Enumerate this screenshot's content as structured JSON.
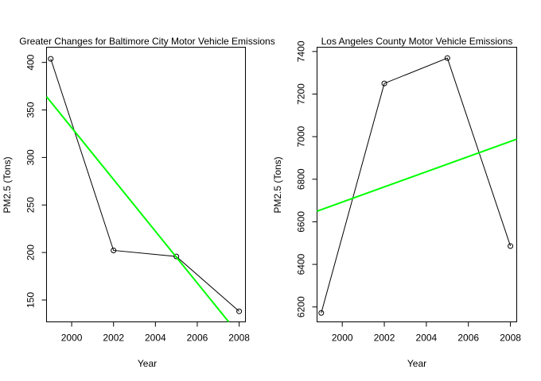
{
  "chart_data": [
    {
      "type": "line",
      "title": "Greater Changes for Baltimore City Motor Vehicle Emissions",
      "xlabel": "Year",
      "ylabel": "PM2.5 (Tons)",
      "xlim": [
        1998.8,
        2008.3
      ],
      "ylim": [
        127,
        416
      ],
      "xticks": [
        "2000",
        "2002",
        "2004",
        "2006",
        "2008"
      ],
      "xtick_values": [
        2000,
        2002,
        2004,
        2006,
        2008
      ],
      "yticks": [
        "150",
        "200",
        "250",
        "300",
        "350",
        "400"
      ],
      "ytick_values": [
        150,
        200,
        250,
        300,
        350,
        400
      ],
      "grid": false,
      "series": [
        {
          "x": [
            1999,
            2002,
            2005,
            2008
          ],
          "y": [
            403.8,
            202.2,
            195.8,
            138.1
          ],
          "color": "#000000",
          "markers": "open-circle"
        }
      ],
      "trendline": {
        "x": [
          1998.8,
          2007.5
        ],
        "y": [
          364,
          127
        ],
        "color": "#00ff00"
      }
    },
    {
      "type": "line",
      "title": "Los Angeles County Motor Vehicle Emissions",
      "xlabel": "Year",
      "ylabel": "PM2.5 (Tons)",
      "xlim": [
        1998.8,
        2008.3
      ],
      "ylim": [
        6130,
        7420
      ],
      "xticks": [
        "2000",
        "2002",
        "2004",
        "2006",
        "2008"
      ],
      "xtick_values": [
        2000,
        2002,
        2004,
        2006,
        2008
      ],
      "yticks": [
        "6200",
        "6400",
        "6600",
        "6800",
        "7000",
        "7200",
        "7400"
      ],
      "ytick_values": [
        6200,
        6400,
        6600,
        6800,
        7000,
        7200,
        7400
      ],
      "grid": false,
      "series": [
        {
          "x": [
            1999,
            2002,
            2005,
            2008
          ],
          "y": [
            6172,
            7250,
            7369,
            6486
          ],
          "color": "#000000",
          "markers": "open-circle"
        }
      ],
      "trendline": {
        "x": [
          1998.8,
          2008.3
        ],
        "y": [
          6650,
          6988
        ],
        "color": "#00ff00"
      }
    }
  ]
}
